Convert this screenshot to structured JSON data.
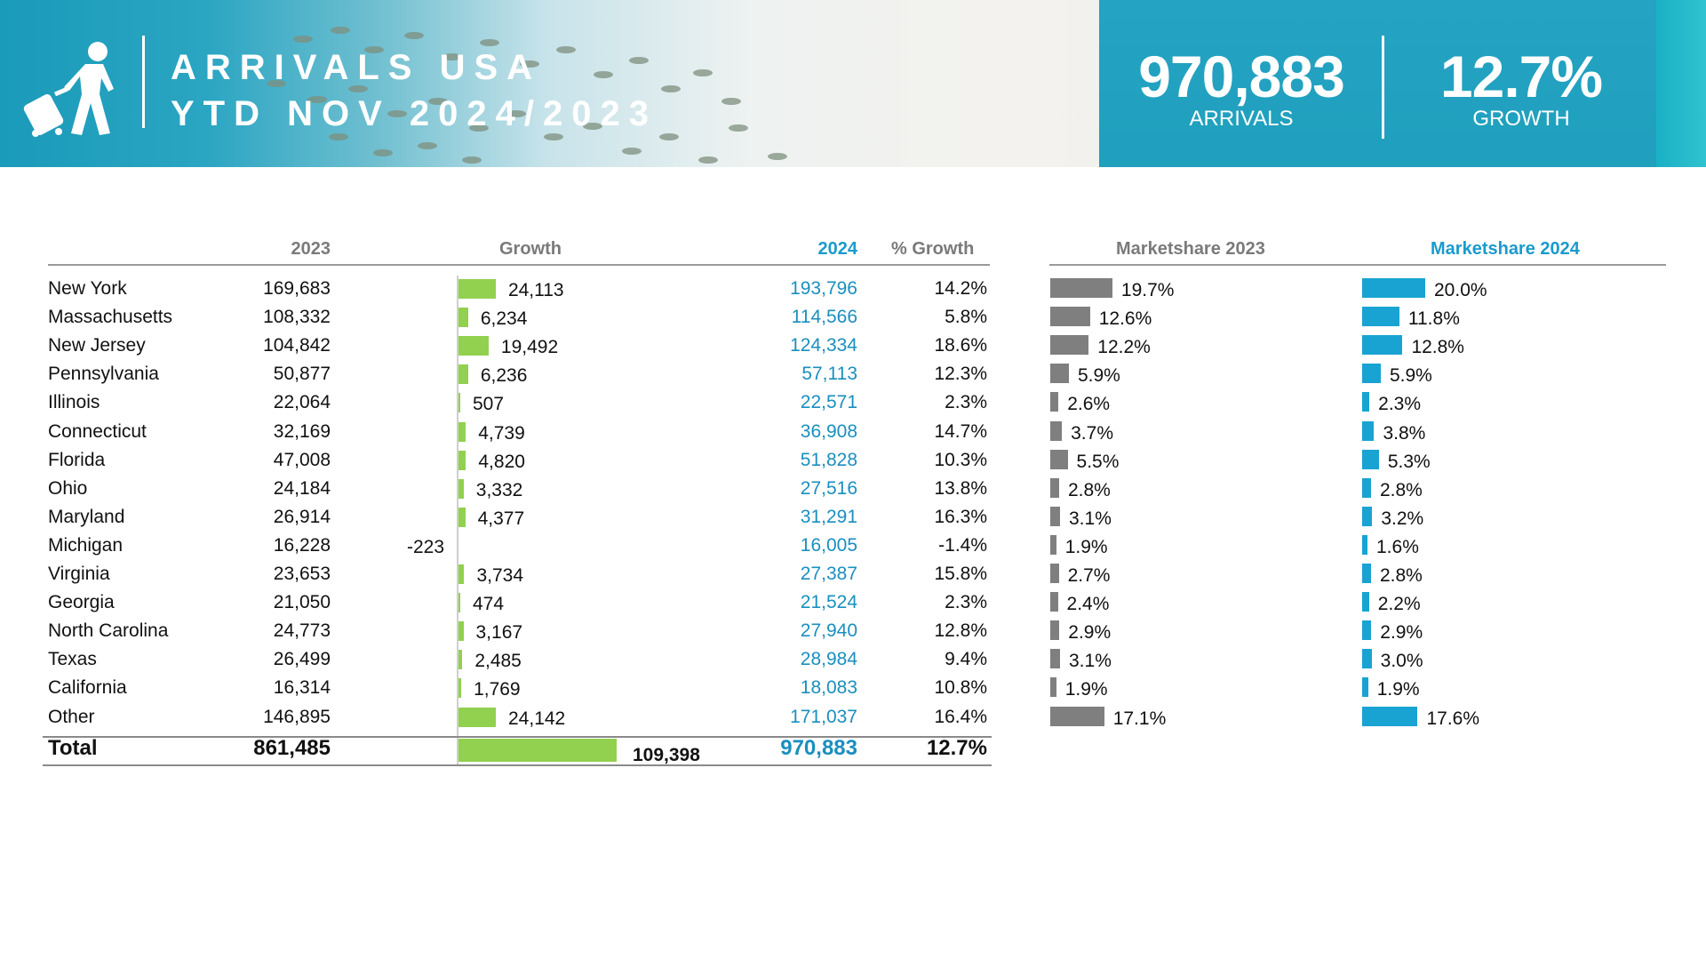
{
  "header": {
    "title_line1": "ARRIVALS USA",
    "title_line2": "YTD NOV 2024/2023",
    "kpi_arrivals_value": "970,883",
    "kpi_arrivals_label": "ARRIVALS",
    "kpi_growth_value": "12.7%",
    "kpi_growth_label": "GROWTH"
  },
  "colors": {
    "growth_bar": "#92d050",
    "share_2023_bar": "#7f7f7f",
    "share_2024_bar": "#19a3d2",
    "value_2024_text": "#1a8fbf",
    "banner": "#1fa0bd"
  },
  "icons": [
    "traveler-with-suitcase-icon"
  ],
  "chart_data": {
    "type": "table",
    "columns": [
      "",
      "2023",
      "Growth",
      "2024",
      "% Growth",
      "Marketshare 2023",
      "Marketshare 2024"
    ],
    "rows": [
      {
        "state": "New York",
        "y2023": "169,683",
        "growth": "24,113",
        "growth_value": 24113,
        "y2024": "193,796",
        "pct": "14.2%",
        "ms2023": "19.7%",
        "ms2023_value": 19.7,
        "ms2024": "20.0%",
        "ms2024_value": 20.0
      },
      {
        "state": "Massachusetts",
        "y2023": "108,332",
        "growth": "6,234",
        "growth_value": 6234,
        "y2024": "114,566",
        "pct": "5.8%",
        "ms2023": "12.6%",
        "ms2023_value": 12.6,
        "ms2024": "11.8%",
        "ms2024_value": 11.8
      },
      {
        "state": "New Jersey",
        "y2023": "104,842",
        "growth": "19,492",
        "growth_value": 19492,
        "y2024": "124,334",
        "pct": "18.6%",
        "ms2023": "12.2%",
        "ms2023_value": 12.2,
        "ms2024": "12.8%",
        "ms2024_value": 12.8
      },
      {
        "state": "Pennsylvania",
        "y2023": "50,877",
        "growth": "6,236",
        "growth_value": 6236,
        "y2024": "57,113",
        "pct": "12.3%",
        "ms2023": "5.9%",
        "ms2023_value": 5.9,
        "ms2024": "5.9%",
        "ms2024_value": 5.9
      },
      {
        "state": "Illinois",
        "y2023": "22,064",
        "growth": "507",
        "growth_value": 507,
        "y2024": "22,571",
        "pct": "2.3%",
        "ms2023": "2.6%",
        "ms2023_value": 2.6,
        "ms2024": "2.3%",
        "ms2024_value": 2.3
      },
      {
        "state": "Connecticut",
        "y2023": "32,169",
        "growth": "4,739",
        "growth_value": 4739,
        "y2024": "36,908",
        "pct": "14.7%",
        "ms2023": "3.7%",
        "ms2023_value": 3.7,
        "ms2024": "3.8%",
        "ms2024_value": 3.8
      },
      {
        "state": "Florida",
        "y2023": "47,008",
        "growth": "4,820",
        "growth_value": 4820,
        "y2024": "51,828",
        "pct": "10.3%",
        "ms2023": "5.5%",
        "ms2023_value": 5.5,
        "ms2024": "5.3%",
        "ms2024_value": 5.3
      },
      {
        "state": "Ohio",
        "y2023": "24,184",
        "growth": "3,332",
        "growth_value": 3332,
        "y2024": "27,516",
        "pct": "13.8%",
        "ms2023": "2.8%",
        "ms2023_value": 2.8,
        "ms2024": "2.8%",
        "ms2024_value": 2.8
      },
      {
        "state": "Maryland",
        "y2023": "26,914",
        "growth": "4,377",
        "growth_value": 4377,
        "y2024": "31,291",
        "pct": "16.3%",
        "ms2023": "3.1%",
        "ms2023_value": 3.1,
        "ms2024": "3.2%",
        "ms2024_value": 3.2
      },
      {
        "state": "Michigan",
        "y2023": "16,228",
        "growth": "-223",
        "growth_value": -223,
        "y2024": "16,005",
        "pct": "-1.4%",
        "ms2023": "1.9%",
        "ms2023_value": 1.9,
        "ms2024": "1.6%",
        "ms2024_value": 1.6
      },
      {
        "state": "Virginia",
        "y2023": "23,653",
        "growth": "3,734",
        "growth_value": 3734,
        "y2024": "27,387",
        "pct": "15.8%",
        "ms2023": "2.7%",
        "ms2023_value": 2.7,
        "ms2024": "2.8%",
        "ms2024_value": 2.8
      },
      {
        "state": "Georgia",
        "y2023": "21,050",
        "growth": "474",
        "growth_value": 474,
        "y2024": "21,524",
        "pct": "2.3%",
        "ms2023": "2.4%",
        "ms2023_value": 2.4,
        "ms2024": "2.2%",
        "ms2024_value": 2.2
      },
      {
        "state": "North Carolina",
        "y2023": "24,773",
        "growth": "3,167",
        "growth_value": 3167,
        "y2024": "27,940",
        "pct": "12.8%",
        "ms2023": "2.9%",
        "ms2023_value": 2.9,
        "ms2024": "2.9%",
        "ms2024_value": 2.9
      },
      {
        "state": "Texas",
        "y2023": "26,499",
        "growth": "2,485",
        "growth_value": 2485,
        "y2024": "28,984",
        "pct": "9.4%",
        "ms2023": "3.1%",
        "ms2023_value": 3.1,
        "ms2024": "3.0%",
        "ms2024_value": 3.0
      },
      {
        "state": "California",
        "y2023": "16,314",
        "growth": "1,769",
        "growth_value": 1769,
        "y2024": "18,083",
        "pct": "10.8%",
        "ms2023": "1.9%",
        "ms2023_value": 1.9,
        "ms2024": "1.9%",
        "ms2024_value": 1.9
      },
      {
        "state": "Other",
        "y2023": "146,895",
        "growth": "24,142",
        "growth_value": 24142,
        "y2024": "171,037",
        "pct": "16.4%",
        "ms2023": "17.1%",
        "ms2023_value": 17.1,
        "ms2024": "17.6%",
        "ms2024_value": 17.6
      }
    ],
    "total": {
      "state": "Total",
      "y2023": "861,485",
      "growth": "109,398",
      "growth_value": 109398,
      "y2024": "970,883",
      "pct": "12.7%"
    }
  }
}
